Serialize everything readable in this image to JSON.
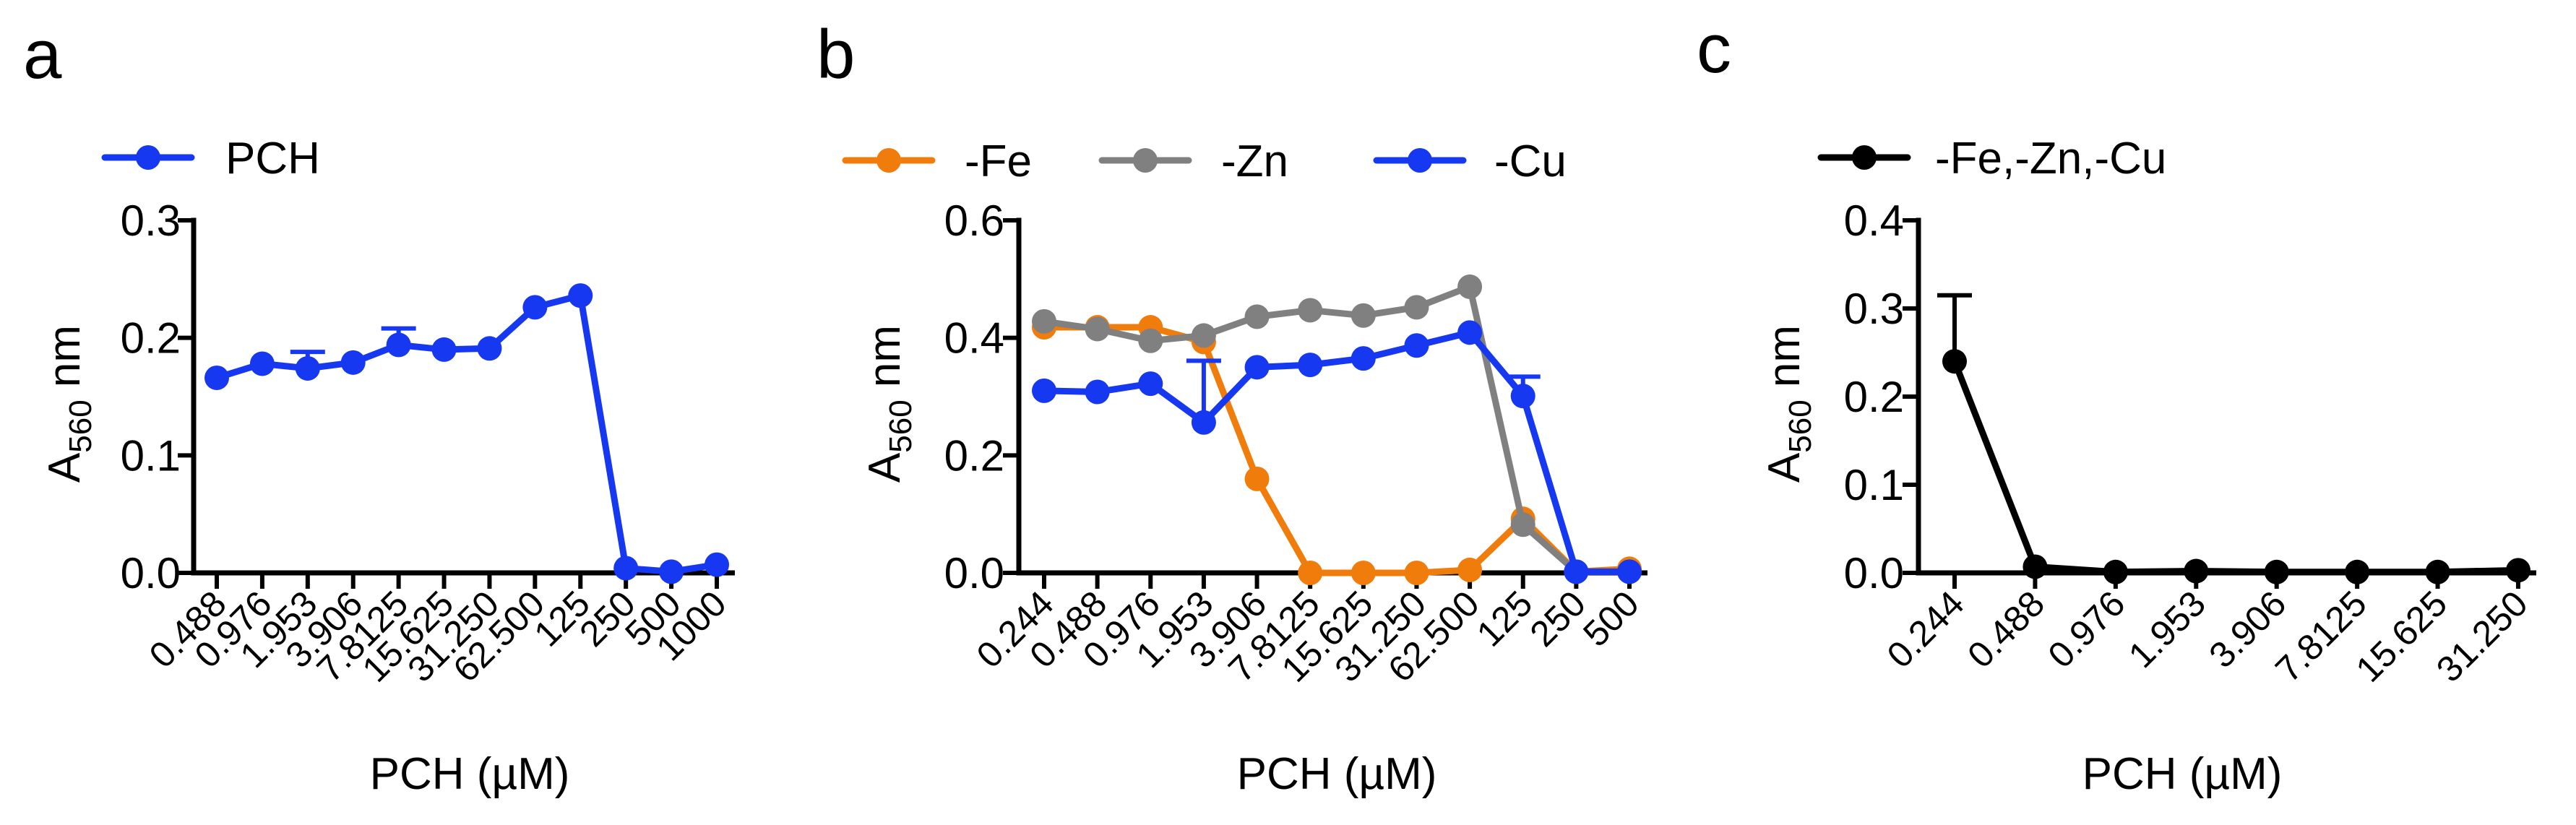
{
  "chart_data": [
    {
      "panel": "a",
      "type": "line",
      "title": "",
      "xlabel": "PCH (µM)",
      "ylabel_main": "A",
      "ylabel_sub": "560",
      "ylabel_unit": " nm",
      "ylim": [
        0,
        0.3
      ],
      "yticks": [
        0.0,
        0.1,
        0.2,
        0.3
      ],
      "ytick_labels": [
        "0.0",
        "0.1",
        "0.2",
        "0.3"
      ],
      "categories": [
        "0.488",
        "0.976",
        "1.953",
        "3.906",
        "7.8125",
        "15.625",
        "31.250",
        "62.500",
        "125",
        "250",
        "500",
        "1000"
      ],
      "series": [
        {
          "name": "PCH",
          "color": "#1538f0",
          "values": [
            0.166,
            0.178,
            0.174,
            0.179,
            0.194,
            0.19,
            0.191,
            0.226,
            0.236,
            0.004,
            0.001,
            0.007
          ],
          "errors": [
            0,
            0,
            0.014,
            0,
            0.014,
            0,
            0,
            0,
            0,
            0,
            0,
            0
          ]
        }
      ]
    },
    {
      "panel": "b",
      "type": "line",
      "title": "",
      "xlabel": "PCH (µM)",
      "ylabel_main": "A",
      "ylabel_sub": "560",
      "ylabel_unit": " nm",
      "ylim": [
        0,
        0.6
      ],
      "yticks": [
        0.0,
        0.2,
        0.4,
        0.6
      ],
      "ytick_labels": [
        "0.0",
        "0.2",
        "0.4",
        "0.6"
      ],
      "categories": [
        "0.244",
        "0.488",
        "0.976",
        "1.953",
        "3.906",
        "7.8125",
        "15.625",
        "31.250",
        "62.500",
        "125",
        "250",
        "500"
      ],
      "series": [
        {
          "name": "-Fe",
          "color": "#f07c0c",
          "values": [
            0.418,
            0.418,
            0.418,
            0.393,
            0.16,
            0.0,
            0.0,
            0.0,
            0.005,
            0.092,
            0.002,
            0.007
          ],
          "errors": [
            0,
            0,
            0,
            0,
            0,
            0,
            0,
            0,
            0,
            0,
            0,
            0
          ]
        },
        {
          "name": "-Zn",
          "color": "#808080",
          "values": [
            0.428,
            0.415,
            0.395,
            0.404,
            0.436,
            0.447,
            0.438,
            0.452,
            0.487,
            0.082,
            0.002,
            0.002
          ],
          "errors": [
            0,
            0,
            0,
            0,
            0,
            0,
            0,
            0,
            0,
            0,
            0,
            0
          ]
        },
        {
          "name": "-Cu",
          "color": "#1538f0",
          "values": [
            0.31,
            0.308,
            0.322,
            0.256,
            0.35,
            0.354,
            0.365,
            0.387,
            0.409,
            0.301,
            0.002,
            0.002
          ],
          "errors": [
            0,
            0,
            0,
            0.105,
            0,
            0,
            0,
            0,
            0,
            0.033,
            0,
            0
          ]
        }
      ]
    },
    {
      "panel": "c",
      "type": "line",
      "title": "",
      "xlabel": "PCH (µM)",
      "ylabel_main": "A",
      "ylabel_sub": "560",
      "ylabel_unit": " nm",
      "ylim": [
        0,
        0.4
      ],
      "yticks": [
        0.0,
        0.1,
        0.2,
        0.3,
        0.4
      ],
      "ytick_labels": [
        "0.0",
        "0.1",
        "0.2",
        "0.3",
        "0.4"
      ],
      "categories": [
        "0.244",
        "0.488",
        "0.976",
        "1.953",
        "3.906",
        "7.8125",
        "15.625",
        "31.250"
      ],
      "series": [
        {
          "name": "-Fe,-Zn,-Cu",
          "color": "#000000",
          "values": [
            0.24,
            0.007,
            0.001,
            0.002,
            0.001,
            0.001,
            0.001,
            0.003
          ],
          "errors": [
            0.075,
            0,
            0,
            0,
            0,
            0,
            0,
            0
          ]
        }
      ]
    }
  ]
}
